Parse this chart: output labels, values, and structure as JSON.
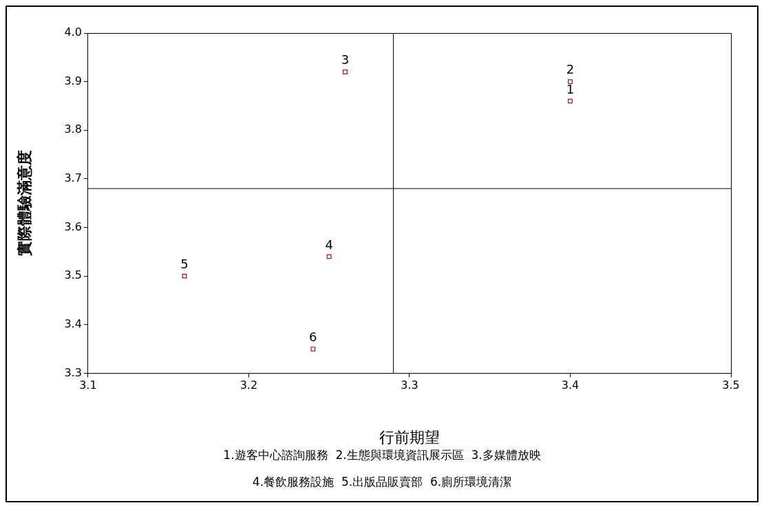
{
  "chart_data": {
    "type": "scatter",
    "xlabel": "行前期望",
    "ylabel": "實際體驗滿意度",
    "x": [
      3.4,
      3.4,
      3.26,
      3.25,
      3.16,
      3.24
    ],
    "values": [
      3.86,
      3.9,
      3.92,
      3.54,
      3.5,
      3.35
    ],
    "color": "#e00000",
    "marker": "square",
    "xlim": [
      3.1,
      3.5
    ],
    "xticks": [
      3.1,
      3.2,
      3.3,
      3.4,
      3.5
    ],
    "ylim": [
      3.3,
      4.0
    ],
    "yticks": [
      3.3,
      3.4,
      3.5,
      3.6,
      3.7,
      3.8,
      3.9,
      {
        "value": 4.0,
        "label": "4.0"
      }
    ],
    "grid": false,
    "legend": false,
    "ref_lines": [
      {
        "axis": "x",
        "value": 3.29,
        "color": "#000000"
      },
      {
        "axis": "y",
        "value": 3.68,
        "color": "#000000"
      }
    ],
    "annotations": [
      {
        "text": "1",
        "x": 3.4,
        "y": 3.86
      },
      {
        "text": "2",
        "x": 3.4,
        "y": 3.9
      },
      {
        "text": "3",
        "x": 3.26,
        "y": 3.92
      },
      {
        "text": "4",
        "x": 3.25,
        "y": 3.54
      },
      {
        "text": "5",
        "x": 3.16,
        "y": 3.5
      },
      {
        "text": "6",
        "x": 3.24,
        "y": 3.35
      },
      "1.遊客中心諮詢服務  2.生態與環境資訊展示區  3.多媒體放映",
      "4.餐飲服務設施  5.出版品販賣部  6.廁所環境清潔"
    ]
  }
}
